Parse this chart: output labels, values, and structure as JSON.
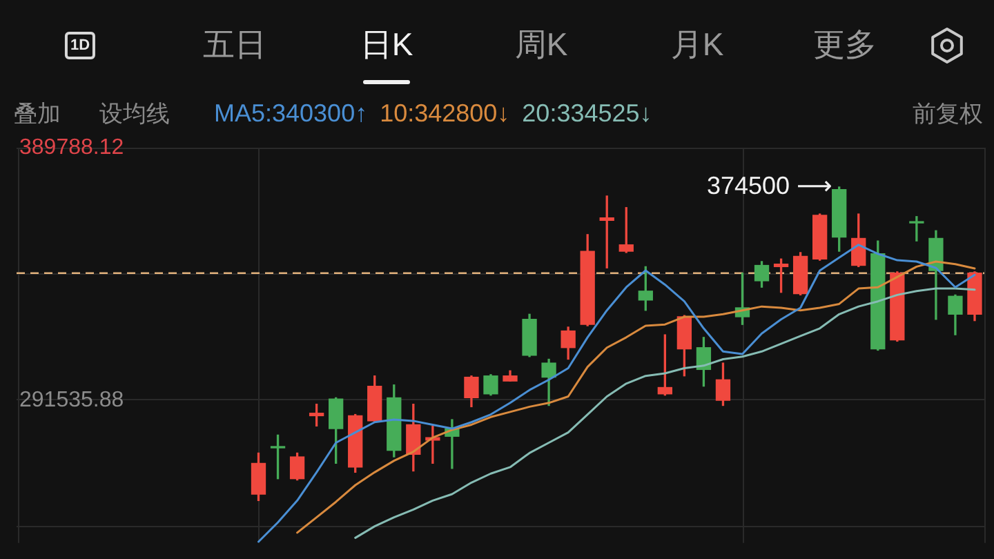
{
  "chart_data": {
    "type": "candlestick",
    "categories": [
      null,
      null,
      null,
      null,
      null,
      null,
      null,
      null,
      null,
      null,
      null,
      null,
      null,
      null,
      null,
      null,
      null,
      null,
      null,
      null,
      null,
      null,
      null,
      null,
      null,
      null,
      null,
      null,
      null,
      null,
      null,
      null,
      null,
      null,
      null,
      null,
      null,
      null,
      null,
      null,
      null,
      null,
      null,
      null,
      null,
      null,
      null,
      null,
      null,
      null
    ],
    "ohlc": [
      null,
      null,
      null,
      null,
      null,
      null,
      null,
      null,
      null,
      null,
      null,
      null,
      [
        255000,
        271000,
        252500,
        267000
      ],
      [
        273500,
        278000,
        261000,
        273000
      ],
      [
        261000,
        271000,
        260500,
        269500
      ],
      [
        285500,
        290000,
        281500,
        286500
      ],
      [
        292000,
        292500,
        267000,
        280500
      ],
      [
        265500,
        286000,
        263500,
        285500
      ],
      [
        283500,
        301000,
        283000,
        297000
      ],
      [
        292500,
        297500,
        269500,
        272000
      ],
      [
        270500,
        290000,
        264000,
        282000
      ],
      [
        276000,
        281500,
        267000,
        277000
      ],
      [
        280500,
        284000,
        265000,
        277500
      ],
      [
        292500,
        301000,
        289000,
        300500
      ],
      [
        301000,
        301500,
        293500,
        294000
      ],
      [
        299000,
        303000,
        299000,
        301000
      ],
      [
        323000,
        325000,
        308500,
        309000
      ],
      [
        306000,
        307500,
        289500,
        300500
      ],
      [
        312000,
        320000,
        307500,
        318500
      ],
      [
        321000,
        356000,
        320500,
        349500
      ],
      [
        361500,
        371000,
        343000,
        362500
      ],
      [
        349500,
        366500,
        349000,
        352000
      ],
      [
        334000,
        343500,
        326500,
        330500
      ],
      [
        294000,
        317000,
        293500,
        296500
      ],
      [
        311500,
        324500,
        301000,
        324000
      ],
      [
        312000,
        316000,
        297000,
        303500
      ],
      [
        291500,
        306000,
        289500,
        299500
      ],
      [
        327500,
        341000,
        321000,
        324000
      ],
      [
        344000,
        345500,
        335500,
        338000
      ],
      [
        343500,
        346500,
        333500,
        344500
      ],
      [
        333000,
        349000,
        332500,
        347500
      ],
      [
        346500,
        364000,
        346000,
        363500
      ],
      [
        373500,
        374500,
        349500,
        355000
      ],
      [
        344000,
        364000,
        343500,
        354500
      ],
      [
        348500,
        353500,
        311000,
        311500
      ],
      [
        315000,
        341500,
        314500,
        341000
      ],
      [
        361000,
        363000,
        353500,
        360500
      ],
      [
        354500,
        357500,
        323000,
        342000
      ],
      [
        332000,
        332500,
        317000,
        325000
      ],
      [
        325000,
        341500,
        322500,
        341000
      ]
    ],
    "colors": [
      null,
      null,
      null,
      null,
      null,
      null,
      null,
      null,
      null,
      null,
      null,
      null,
      "#f0483e",
      "#46ad58",
      "#f0483e",
      "#f0483e",
      "#46ad58",
      "#f0483e",
      "#f0483e",
      "#46ad58",
      "#f0483e",
      "#f0483e",
      "#46ad58",
      "#f0483e",
      "#46ad58",
      "#f0483e",
      "#46ad58",
      "#46ad58",
      "#f0483e",
      "#f0483e",
      "#f0483e",
      "#f0483e",
      "#46ad58",
      "#f0483e",
      "#f0483e",
      "#46ad58",
      "#f0483e",
      "#46ad58",
      "#46ad58",
      "#f0483e",
      "#f0483e",
      "#f0483e",
      "#46ad58",
      "#f0483e",
      "#46ad58",
      "#f0483e",
      "#46ad58",
      "#46ad58",
      "#46ad58",
      "#f0483e"
    ],
    "series": [
      {
        "name": "MA5:340300↑",
        "type": "line",
        "color": "#4a8fd4",
        "values": [
          null,
          null,
          null,
          null,
          null,
          null,
          null,
          null,
          null,
          null,
          null,
          null,
          236500,
          244000,
          252500,
          263500,
          275000,
          279000,
          283000,
          284000,
          283500,
          282000,
          280500,
          283000,
          286000,
          290500,
          295500,
          299500,
          304000,
          316000,
          326500,
          335500,
          342000,
          336500,
          330000,
          319500,
          310500,
          309500,
          317500,
          323000,
          327500,
          342000,
          347000,
          352000,
          348500,
          346000,
          345500,
          343000,
          335500,
          340300
        ]
      },
      {
        "name": "10:342800↓",
        "type": "line",
        "color": "#d98a3e",
        "values": [
          null,
          null,
          null,
          null,
          null,
          null,
          null,
          null,
          null,
          null,
          null,
          null,
          null,
          null,
          240000,
          246000,
          252000,
          258500,
          263500,
          268000,
          271500,
          277000,
          280000,
          282000,
          285000,
          287000,
          289000,
          290500,
          293000,
          304500,
          312000,
          316000,
          320500,
          321000,
          324000,
          324000,
          325000,
          326500,
          328000,
          327500,
          326500,
          327500,
          329000,
          335000,
          335500,
          339500,
          343500,
          345500,
          344500,
          342800
        ]
      },
      {
        "name": "20:334525↓",
        "type": "line",
        "color": "#86bcb4",
        "values": [
          null,
          null,
          null,
          null,
          null,
          null,
          null,
          null,
          null,
          null,
          null,
          null,
          null,
          null,
          null,
          null,
          null,
          238000,
          242500,
          246000,
          249000,
          252500,
          255000,
          259500,
          263000,
          265500,
          271000,
          275000,
          279000,
          286000,
          293000,
          298000,
          301000,
          302000,
          304000,
          305000,
          307500,
          308500,
          310500,
          313500,
          316500,
          319500,
          325000,
          328000,
          330000,
          332500,
          334000,
          335000,
          335000,
          334525
        ]
      }
    ],
    "ylim": [
      236000,
      389788.12
    ],
    "yticks": [
      {
        "value": 242409.76,
        "label": null
      },
      291535.88,
      {
        "value": 340662,
        "label": null
      },
      389788.12
    ],
    "grid": "y",
    "tick_labels": "y",
    "marker": "none",
    "ref_lines": [
      {
        "axis": "y",
        "value": 341000,
        "color": "#e2b27c",
        "line_style": "dashed"
      }
    ],
    "annotations": [
      "1D",
      "五日",
      "日K",
      "周K",
      "月K",
      "更多",
      "叠加",
      "设均线",
      "前复权",
      "374500 ⟶"
    ]
  }
}
